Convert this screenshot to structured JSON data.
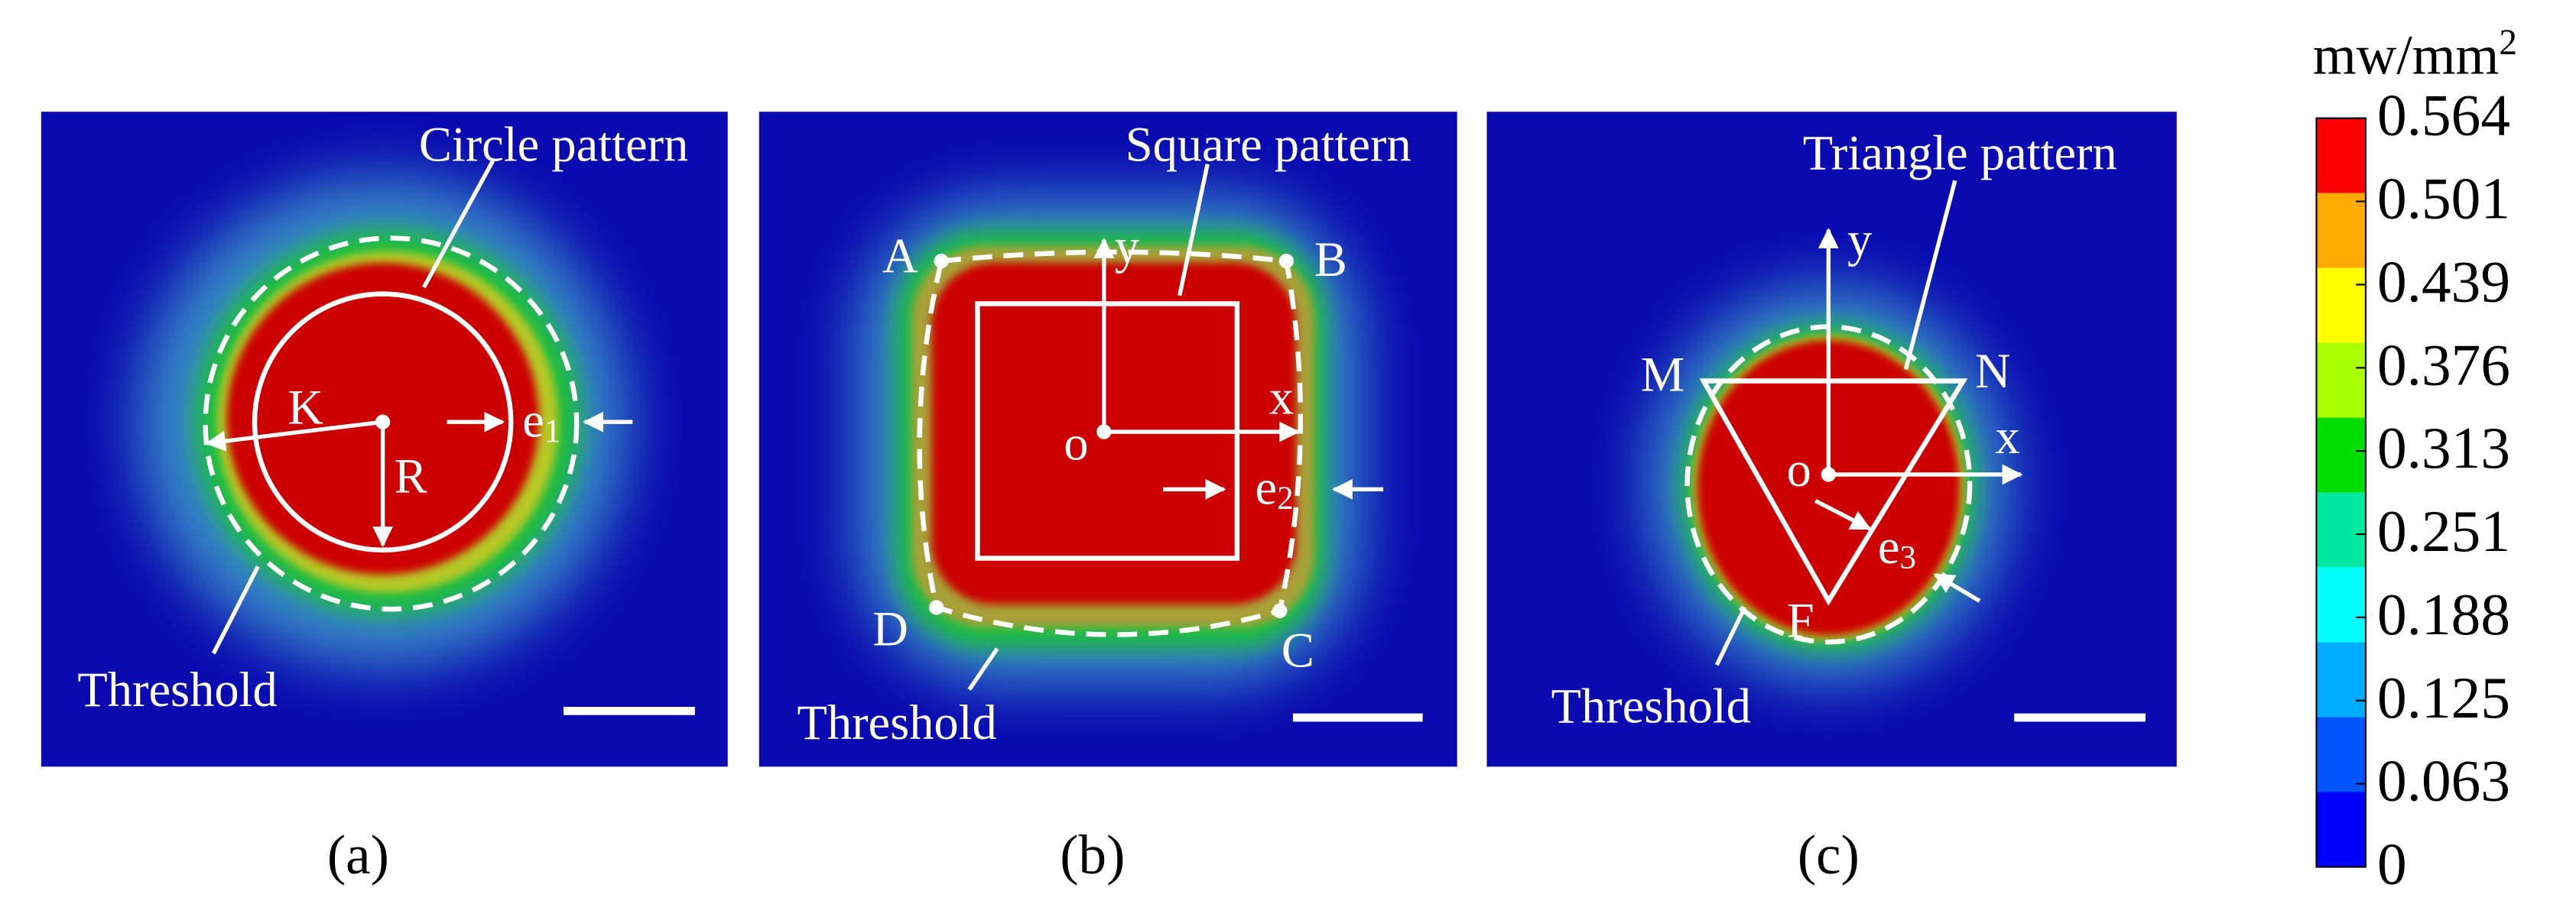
{
  "panels": [
    {
      "caption": "(a)",
      "title": "Circle pattern",
      "threshold": "Threshold",
      "labels": {
        "k": "K",
        "r": "R"
      },
      "error": {
        "text": "e",
        "subscript": "1"
      }
    },
    {
      "caption": "(b)",
      "title": "Square pattern",
      "threshold": "Threshold",
      "labels": {
        "a": "A",
        "b": "B",
        "c": "C",
        "d": "D",
        "o": "o",
        "x": "x",
        "y": "y"
      },
      "error": {
        "text": "e",
        "subscript": "2"
      }
    },
    {
      "caption": "(c)",
      "title": "Triangle pattern",
      "threshold": "Threshold",
      "labels": {
        "m": "M",
        "n": "N",
        "f": "F",
        "o": "o",
        "x": "x",
        "y": "y"
      },
      "error": {
        "text": "e",
        "subscript": "3"
      }
    }
  ],
  "colorbar": {
    "unit": {
      "base": "mw/mm",
      "superscript": "2"
    },
    "ticks": [
      "0.564",
      "0.501",
      "0.439",
      "0.376",
      "0.313",
      "0.251",
      "0.188",
      "0.125",
      "0.063",
      "0"
    ]
  }
}
